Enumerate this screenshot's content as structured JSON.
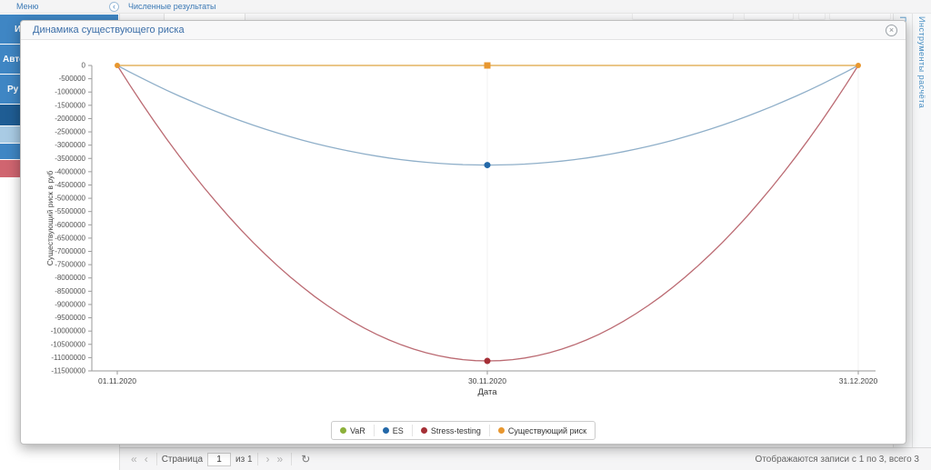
{
  "top_bar": {
    "menu_panel_title": "Меню",
    "collapse_icon": "‹",
    "main_panel_title": "Численные результаты"
  },
  "sidebar": {
    "items": [
      {
        "label": "И",
        "bg": "#3f86c4"
      },
      {
        "label": "Авто",
        "bg": "#3f86c4"
      },
      {
        "label": "Ру",
        "bg": "#3f86c4"
      },
      {
        "label": "",
        "bg": "#1f5d94"
      },
      {
        "label": "",
        "bg": "#a9cbe4"
      },
      {
        "label": "",
        "bg": "#3f86c4"
      },
      {
        "label": "",
        "bg": "#d06570"
      }
    ]
  },
  "right_tabs": {
    "tools_tab_label": "Инструменты расчёта",
    "collapsed_tab_label": "По",
    "chevron_icon": "‹"
  },
  "dialog": {
    "title": "Динамика существующего риска",
    "close_icon": "×"
  },
  "chart_data": {
    "type": "line",
    "title": "Динамика существующего риска",
    "x": [
      "01.11.2020",
      "30.11.2020",
      "31.12.2020"
    ],
    "series": [
      {
        "name": "VaR",
        "color": "#8cb03a",
        "line_color": "#b9cf7a",
        "values": [
          0,
          0,
          0
        ],
        "marker": "circle"
      },
      {
        "name": "ES",
        "color": "#2368a8",
        "line_color": "#8fafc9",
        "values": [
          0,
          -3750000,
          0
        ],
        "marker": "circle"
      },
      {
        "name": "Stress-testing",
        "color": "#a52f36",
        "line_color": "#bb6a72",
        "values": [
          0,
          -11125000,
          0
        ],
        "marker": "circle"
      },
      {
        "name": "Существующий риск",
        "color": "#e8972f",
        "line_color": "#e9ab55",
        "values": [
          0,
          0,
          0
        ],
        "marker": "square"
      }
    ],
    "xlabel": "Дата",
    "ylabel": "Существующий риск в руб",
    "ylim": [
      -11500000,
      0
    ],
    "ytick_step": 500000,
    "grid": "vertical-light",
    "legend_position": "bottom-center"
  },
  "toolbar": {
    "first_icon": "«",
    "prev_icon": "‹",
    "page_label": "Страница",
    "page_value": "1",
    "of_label": "из 1",
    "next_icon": "›",
    "last_icon": "»",
    "refresh_icon": "↻",
    "status": "Отображаются записи с 1 по 3, всего 3"
  }
}
